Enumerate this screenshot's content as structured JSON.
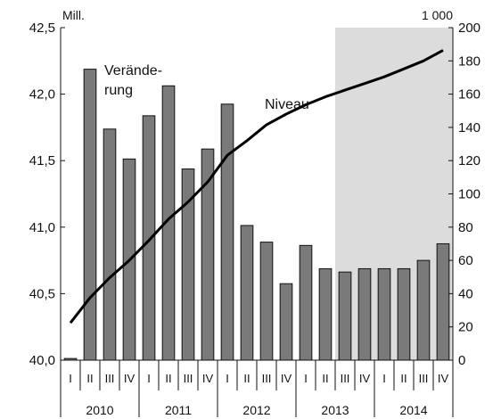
{
  "chart_data": {
    "type": "bar+line",
    "left_axis": {
      "unit_label": "Mill.",
      "ylim": [
        40.0,
        42.5
      ],
      "ticks": [
        "40,0",
        "40,5",
        "41,0",
        "41,5",
        "42,0",
        "42,5"
      ],
      "tick_values": [
        40.0,
        40.5,
        41.0,
        41.5,
        42.0,
        42.5
      ]
    },
    "right_axis": {
      "unit_label": "1 000",
      "ylim": [
        0,
        200
      ],
      "ticks": [
        "0",
        "20",
        "40",
        "60",
        "80",
        "100",
        "120",
        "140",
        "160",
        "180",
        "200"
      ],
      "tick_values": [
        0,
        20,
        40,
        60,
        80,
        100,
        120,
        140,
        160,
        180,
        200
      ]
    },
    "categories": [
      "I",
      "II",
      "III",
      "IV",
      "I",
      "II",
      "III",
      "IV",
      "I",
      "II",
      "III",
      "IV",
      "I",
      "II",
      "III",
      "IV",
      "I",
      "II",
      "III",
      "IV"
    ],
    "years": [
      "2010",
      "2011",
      "2012",
      "2013",
      "2014"
    ],
    "forecast_shading": {
      "from_index": 14,
      "to_index": 19,
      "color": "#dcdcdc"
    },
    "series": [
      {
        "name": "Veränderung",
        "kind": "bar",
        "axis": "right",
        "color": "#7a7a7a",
        "values": [
          1,
          175,
          139,
          121,
          147,
          165,
          115,
          127,
          154,
          81,
          71,
          46,
          69,
          55,
          53,
          55,
          55,
          55,
          60,
          70
        ]
      },
      {
        "name": "Niveau",
        "kind": "line",
        "axis": "left",
        "color": "#000000",
        "values": [
          40.28,
          40.47,
          40.62,
          40.75,
          40.9,
          41.06,
          41.19,
          41.34,
          41.54,
          41.65,
          41.77,
          41.85,
          41.92,
          41.98,
          42.03,
          42.08,
          42.13,
          42.19,
          42.25,
          42.33
        ]
      }
    ],
    "annotations": {
      "bar_series_label_line1": "Verände-",
      "bar_series_label_line2": "rung",
      "line_series_label": "Niveau"
    }
  }
}
